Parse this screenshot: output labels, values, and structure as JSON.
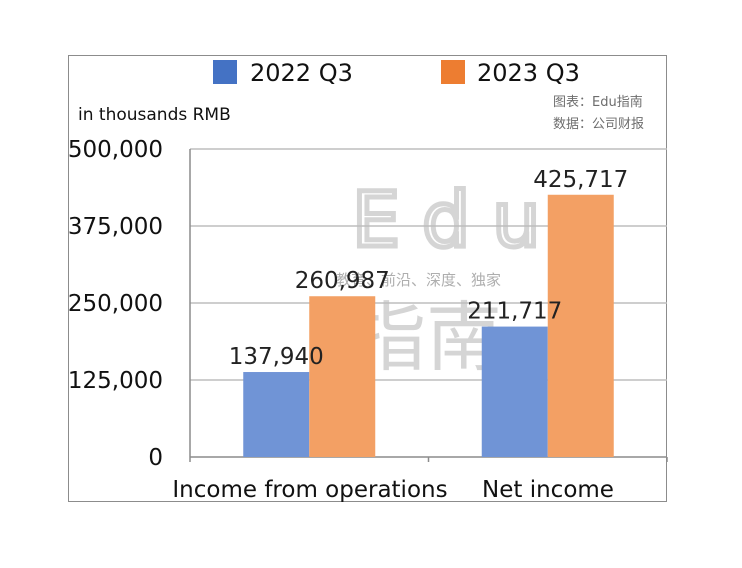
{
  "chart_data": {
    "type": "bar",
    "categories": [
      "Income from operations",
      "Net income"
    ],
    "series": [
      {
        "name": "2022 Q3",
        "values": [
          137940,
          211717
        ],
        "color": "#7094d6"
      },
      {
        "name": "2023 Q3",
        "values": [
          260987,
          425717
        ],
        "color": "#f3a064"
      }
    ],
    "legend_colors": [
      "#4472c4",
      "#ed7d31"
    ],
    "value_labels": [
      [
        "137,940",
        "211,717"
      ],
      [
        "260,987",
        "425,717"
      ]
    ],
    "yticks": [
      {
        "value": 0,
        "label": "0"
      },
      {
        "value": 125000,
        "label": "125,000"
      },
      {
        "value": 250000,
        "label": "250,000"
      },
      {
        "value": 375000,
        "label": "375,000"
      },
      {
        "value": 500000,
        "label": "500,000"
      }
    ],
    "ylim": [
      0,
      500000
    ],
    "ylabel": "in thousands RMB",
    "title": "",
    "xlabel": "",
    "grid": true,
    "legend_position": "top-center",
    "source_lines": [
      "图表：Edu指南",
      "数据：公司财报"
    ]
  },
  "watermark": {
    "brand": "Edu",
    "cn": "指南",
    "slogan": "教育、前沿、深度、独家"
  }
}
